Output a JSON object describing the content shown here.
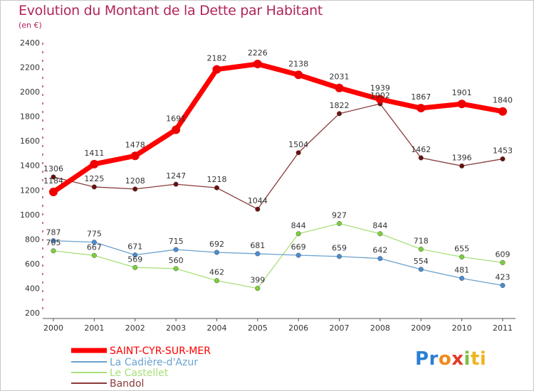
{
  "chart_data": {
    "type": "line",
    "title": "Evolution du Montant de la Dette par Habitant",
    "subtitle": "(en €)",
    "x": [
      "2000",
      "2001",
      "2002",
      "2003",
      "2004",
      "2005",
      "2006",
      "2007",
      "2008",
      "2009",
      "2010",
      "2011"
    ],
    "yticks": [
      "200",
      "400",
      "600",
      "800",
      "1000",
      "1200",
      "1400",
      "1600",
      "1800",
      "2000",
      "2200",
      "2400"
    ],
    "ylim": [
      200,
      2400
    ],
    "grid": false,
    "legend_position": "bottom-left",
    "series": [
      {
        "name": "SAINT-CYR-SUR-MER",
        "color": "#ff0000",
        "point_color": "#ee0000",
        "width": 7,
        "radius": 6,
        "values": [
          1184,
          1411,
          1478,
          1691,
          2182,
          2226,
          2138,
          2031,
          1939,
          1867,
          1901,
          1840
        ]
      },
      {
        "name": "La Cadière-d'Azur",
        "color": "#6aa2cf",
        "point_color": "#4a8cd0",
        "width": 1.3,
        "radius": 3.3,
        "values": [
          787,
          775,
          671,
          715,
          692,
          681,
          669,
          659,
          642,
          554,
          481,
          423
        ]
      },
      {
        "name": "Le Castellet",
        "color": "#a8e07a",
        "point_color": "#7ad03a",
        "width": 1.3,
        "radius": 3.3,
        "values": [
          705,
          667,
          569,
          560,
          462,
          399,
          844,
          927,
          844,
          718,
          655,
          609
        ]
      },
      {
        "name": "Bandol",
        "color": "#8a3a3a",
        "point_color": "#6a1010",
        "width": 1.3,
        "radius": 3.3,
        "values": [
          1306,
          1225,
          1208,
          1247,
          1218,
          1044,
          1504,
          1822,
          1902,
          1462,
          1396,
          1453
        ]
      }
    ]
  },
  "logo": {
    "parts": [
      "Pr",
      "o",
      "x",
      "i",
      "ti"
    ]
  }
}
